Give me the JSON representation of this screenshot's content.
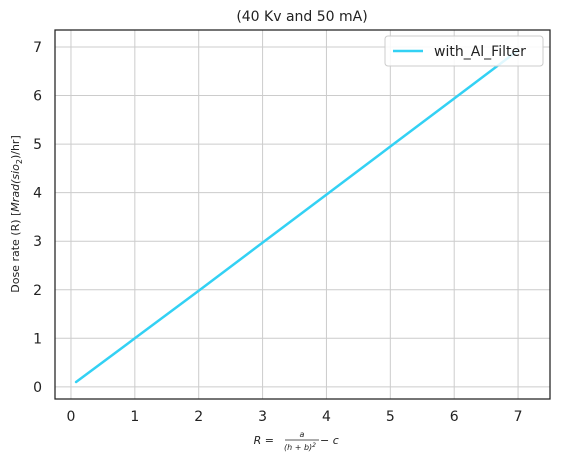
{
  "chart_data": {
    "type": "line",
    "title": "(40 Kv and 50 mA)",
    "ylabel_prefix": "Dose rate (R) [",
    "ylabel_math": "Mrad(sio",
    "ylabel_sub": "2",
    "ylabel_suffix": ")/hr]",
    "xlabel_lhs": "R",
    "xlabel_eq": " = ",
    "xlabel_num": "a",
    "xlabel_den": "(h + b)",
    "xlabel_den_exp": "2",
    "xlabel_rhs": " − c",
    "xlim": [
      -0.25,
      7.5
    ],
    "ylim": [
      -0.25,
      7.35
    ],
    "xticks": [
      0,
      1,
      2,
      3,
      4,
      5,
      6,
      7
    ],
    "yticks": [
      0,
      1,
      2,
      3,
      4,
      5,
      6,
      7
    ],
    "grid": true,
    "legend_position": "top-right",
    "series": [
      {
        "name": "with_Al_Filter",
        "color": "#33d1f4",
        "x": [
          0.08,
          1,
          2,
          3,
          4,
          5,
          6,
          7.0
        ],
        "y": [
          0.1,
          1.0,
          1.98,
          2.97,
          3.96,
          4.95,
          5.94,
          6.93
        ]
      }
    ]
  }
}
